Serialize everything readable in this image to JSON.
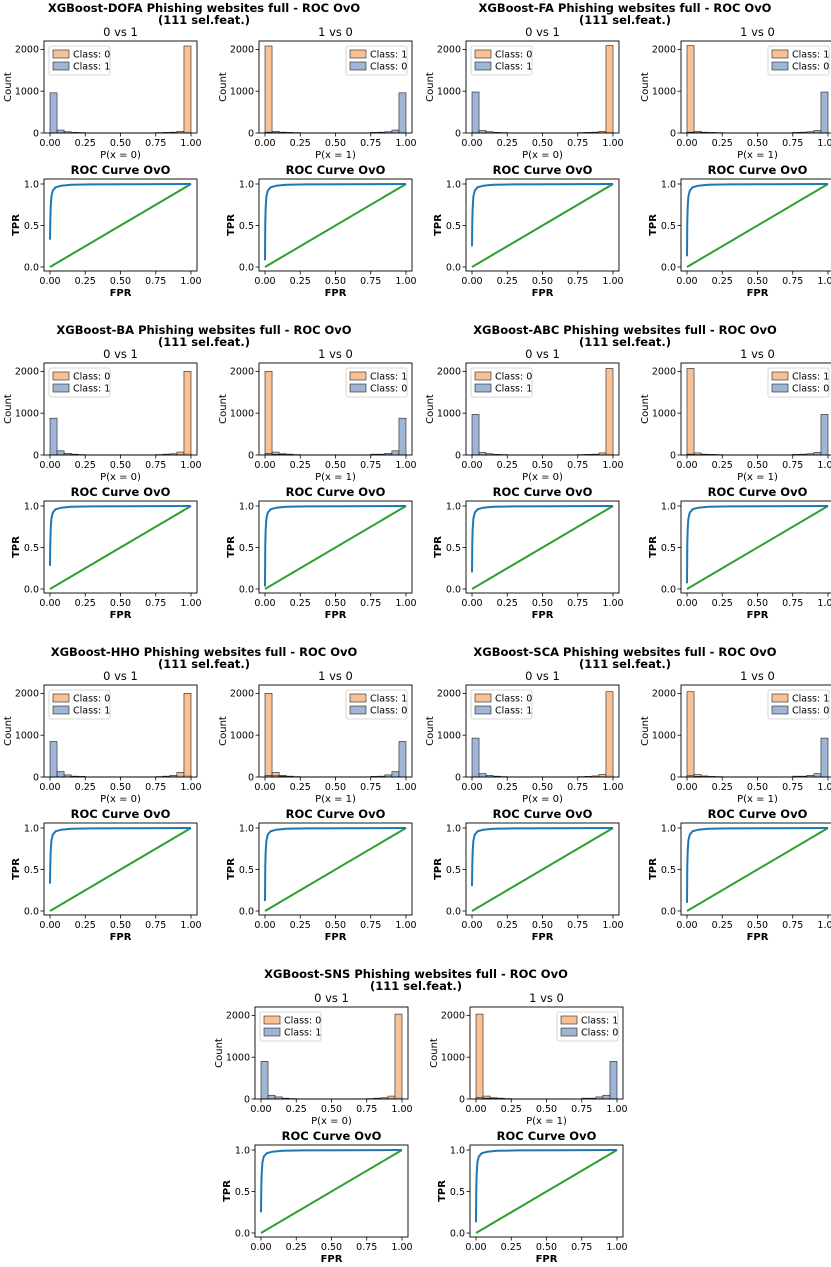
{
  "figure": {
    "background": "#ffffff"
  },
  "colors": {
    "class0": "#f7b583",
    "class1": "#8ea8cf",
    "class0_pos": "#f7b583",
    "roc": "#1f77b4",
    "diag": "#2ca02c"
  },
  "panel_common": {
    "hist_ylabel": "Count",
    "roc_title": "ROC Curve OvO",
    "roc_xlabel": "FPR",
    "roc_ylabel": "TPR",
    "x_ticks": [
      "0.00",
      "0.25",
      "0.50",
      "0.75",
      "1.00"
    ],
    "hist_y_ticks": [
      "0",
      "1000",
      "2000"
    ],
    "roc_y_ticks": [
      "0.0",
      "0.5",
      "1.0"
    ]
  },
  "chart_data": [
    {
      "type": "bar",
      "title_line1": "XGBoost-DOFA Phishing websites full -  ROC OvO",
      "title_line2": "(111 sel.feat.)",
      "panels": [
        {
          "title": "0 vs 1",
          "xlabel": "P(x = 0)",
          "legend": [
            "Class: 0",
            "Class: 1"
          ],
          "class1_bins": [
            960,
            70,
            30,
            15,
            10,
            5,
            5,
            5,
            5,
            5,
            5,
            5,
            5,
            5,
            5,
            5,
            5,
            5,
            10,
            20
          ],
          "class0_bins": [
            5,
            5,
            5,
            5,
            5,
            5,
            5,
            5,
            5,
            5,
            5,
            5,
            5,
            5,
            5,
            10,
            15,
            20,
            40,
            2080
          ]
        },
        {
          "title": "1 vs 0",
          "xlabel": "P(x = 1)",
          "legend": [
            "Class: 1",
            "Class: 0"
          ],
          "class1_bins": [
            2080,
            40,
            20,
            15,
            10,
            5,
            5,
            5,
            5,
            5,
            5,
            5,
            5,
            5,
            5,
            5,
            5,
            5,
            5,
            5
          ],
          "class0_bins": [
            20,
            10,
            5,
            5,
            5,
            5,
            5,
            5,
            5,
            5,
            5,
            5,
            5,
            5,
            5,
            15,
            20,
            30,
            70,
            960
          ]
        }
      ],
      "roc_start_tpr": [
        0.33,
        0.08
      ]
    },
    {
      "type": "bar",
      "title_line1": "XGBoost-FA Phishing websites full -  ROC OvO",
      "title_line2": "(111 sel.feat.)",
      "panels": [
        {
          "title": "0 vs 1",
          "xlabel": "P(x = 0)",
          "legend": [
            "Class: 0",
            "Class: 1"
          ],
          "class1_bins": [
            980,
            60,
            30,
            15,
            10,
            5,
            5,
            5,
            5,
            5,
            5,
            5,
            5,
            5,
            5,
            5,
            5,
            5,
            10,
            20
          ],
          "class0_bins": [
            5,
            5,
            5,
            5,
            5,
            5,
            5,
            5,
            5,
            5,
            5,
            5,
            5,
            5,
            5,
            10,
            15,
            20,
            40,
            2090
          ]
        },
        {
          "title": "1 vs 0",
          "xlabel": "P(x = 1)",
          "legend": [
            "Class: 1",
            "Class: 0"
          ],
          "class1_bins": [
            2090,
            40,
            20,
            15,
            10,
            5,
            5,
            5,
            5,
            5,
            5,
            5,
            5,
            5,
            5,
            5,
            5,
            5,
            5,
            5
          ],
          "class0_bins": [
            20,
            10,
            5,
            5,
            5,
            5,
            5,
            5,
            5,
            5,
            5,
            5,
            5,
            5,
            5,
            15,
            20,
            30,
            60,
            980
          ]
        }
      ],
      "roc_start_tpr": [
        0.25,
        0.13
      ]
    },
    {
      "type": "bar",
      "title_line1": "XGBoost-BA Phishing websites full -  ROC OvO",
      "title_line2": "(111 sel.feat.)",
      "panels": [
        {
          "title": "0 vs 1",
          "xlabel": "P(x = 0)",
          "legend": [
            "Class: 0",
            "Class: 1"
          ],
          "class1_bins": [
            880,
            100,
            40,
            20,
            10,
            5,
            5,
            5,
            5,
            5,
            5,
            5,
            5,
            5,
            5,
            5,
            10,
            15,
            20,
            40
          ],
          "class0_bins": [
            5,
            5,
            5,
            5,
            5,
            5,
            5,
            5,
            5,
            5,
            5,
            5,
            5,
            5,
            5,
            10,
            20,
            30,
            70,
            2000
          ]
        },
        {
          "title": "1 vs 0",
          "xlabel": "P(x = 1)",
          "legend": [
            "Class: 1",
            "Class: 0"
          ],
          "class1_bins": [
            2000,
            70,
            30,
            20,
            10,
            5,
            5,
            5,
            5,
            5,
            5,
            5,
            5,
            5,
            5,
            5,
            5,
            5,
            5,
            5
          ],
          "class0_bins": [
            40,
            20,
            15,
            10,
            5,
            5,
            5,
            5,
            5,
            5,
            5,
            5,
            5,
            5,
            5,
            20,
            20,
            40,
            100,
            880
          ]
        }
      ],
      "roc_start_tpr": [
        0.28,
        0.03
      ]
    },
    {
      "type": "bar",
      "title_line1": "XGBoost-ABC Phishing websites full -  ROC OvO",
      "title_line2": "(111 sel.feat.)",
      "panels": [
        {
          "title": "0 vs 1",
          "xlabel": "P(x = 0)",
          "legend": [
            "Class: 0",
            "Class: 1"
          ],
          "class1_bins": [
            970,
            60,
            30,
            15,
            10,
            5,
            5,
            5,
            5,
            5,
            5,
            5,
            5,
            5,
            5,
            5,
            5,
            5,
            10,
            20
          ],
          "class0_bins": [
            5,
            5,
            5,
            5,
            5,
            5,
            5,
            5,
            5,
            5,
            5,
            5,
            5,
            5,
            5,
            10,
            15,
            20,
            50,
            2070
          ]
        },
        {
          "title": "1 vs 0",
          "xlabel": "P(x = 1)",
          "legend": [
            "Class: 1",
            "Class: 0"
          ],
          "class1_bins": [
            2070,
            50,
            20,
            15,
            10,
            5,
            5,
            5,
            5,
            5,
            5,
            5,
            5,
            5,
            5,
            5,
            5,
            5,
            5,
            5
          ],
          "class0_bins": [
            20,
            10,
            5,
            5,
            5,
            5,
            5,
            5,
            5,
            5,
            5,
            5,
            5,
            5,
            5,
            15,
            20,
            30,
            60,
            970
          ]
        }
      ],
      "roc_start_tpr": [
        0.2,
        0.07
      ]
    },
    {
      "type": "bar",
      "title_line1": "XGBoost-HHO Phishing websites full -  ROC OvO",
      "title_line2": "(111 sel.feat.)",
      "panels": [
        {
          "title": "0 vs 1",
          "xlabel": "P(x = 0)",
          "legend": [
            "Class: 0",
            "Class: 1"
          ],
          "class1_bins": [
            850,
            130,
            50,
            20,
            15,
            5,
            5,
            5,
            5,
            5,
            5,
            5,
            5,
            5,
            5,
            5,
            10,
            20,
            30,
            40
          ],
          "class0_bins": [
            5,
            5,
            5,
            5,
            5,
            5,
            5,
            5,
            5,
            5,
            5,
            5,
            5,
            5,
            5,
            10,
            20,
            40,
            110,
            2000
          ]
        },
        {
          "title": "1 vs 0",
          "xlabel": "P(x = 1)",
          "legend": [
            "Class: 1",
            "Class: 0"
          ],
          "class1_bins": [
            2000,
            110,
            40,
            20,
            10,
            5,
            5,
            5,
            5,
            5,
            5,
            5,
            5,
            5,
            5,
            5,
            5,
            5,
            5,
            5
          ],
          "class0_bins": [
            40,
            30,
            20,
            10,
            5,
            5,
            5,
            5,
            5,
            5,
            5,
            5,
            5,
            5,
            5,
            15,
            20,
            50,
            130,
            850
          ]
        }
      ],
      "roc_start_tpr": [
        0.33,
        0.12
      ]
    },
    {
      "type": "bar",
      "title_line1": "XGBoost-SCA Phishing websites full -  ROC OvO",
      "title_line2": "(111 sel.feat.)",
      "panels": [
        {
          "title": "0 vs 1",
          "xlabel": "P(x = 0)",
          "legend": [
            "Class: 0",
            "Class: 1"
          ],
          "class1_bins": [
            930,
            80,
            40,
            20,
            10,
            5,
            5,
            5,
            5,
            5,
            5,
            5,
            5,
            5,
            5,
            5,
            5,
            10,
            15,
            30
          ],
          "class0_bins": [
            5,
            5,
            5,
            5,
            5,
            5,
            5,
            5,
            5,
            5,
            5,
            5,
            5,
            5,
            5,
            10,
            15,
            25,
            60,
            2040
          ]
        },
        {
          "title": "1 vs 0",
          "xlabel": "P(x = 1)",
          "legend": [
            "Class: 1",
            "Class: 0"
          ],
          "class1_bins": [
            2040,
            60,
            25,
            15,
            10,
            5,
            5,
            5,
            5,
            5,
            5,
            5,
            5,
            5,
            5,
            5,
            5,
            5,
            5,
            5
          ],
          "class0_bins": [
            30,
            15,
            10,
            5,
            5,
            5,
            5,
            5,
            5,
            5,
            5,
            5,
            5,
            5,
            5,
            20,
            20,
            40,
            80,
            930
          ]
        }
      ],
      "roc_start_tpr": [
        0.3,
        0.1
      ]
    },
    {
      "type": "bar",
      "title_line1": "XGBoost-SNS Phishing websites full -  ROC OvO",
      "title_line2": "(111 sel.feat.)",
      "panels": [
        {
          "title": "0 vs 1",
          "xlabel": "P(x = 0)",
          "legend": [
            "Class: 0",
            "Class: 1"
          ],
          "class1_bins": [
            900,
            90,
            50,
            20,
            10,
            5,
            5,
            5,
            5,
            5,
            5,
            5,
            5,
            5,
            5,
            5,
            10,
            15,
            20,
            35
          ],
          "class0_bins": [
            5,
            5,
            5,
            5,
            5,
            5,
            5,
            5,
            5,
            5,
            5,
            5,
            5,
            5,
            5,
            10,
            20,
            30,
            70,
            2030
          ]
        },
        {
          "title": "1 vs 0",
          "xlabel": "P(x = 1)",
          "legend": [
            "Class: 1",
            "Class: 0"
          ],
          "class1_bins": [
            2030,
            70,
            30,
            20,
            10,
            5,
            5,
            5,
            5,
            5,
            5,
            5,
            5,
            5,
            5,
            5,
            5,
            5,
            5,
            5
          ],
          "class0_bins": [
            35,
            20,
            15,
            10,
            5,
            5,
            5,
            5,
            5,
            5,
            5,
            5,
            5,
            5,
            5,
            20,
            20,
            50,
            90,
            900
          ]
        }
      ],
      "roc_start_tpr": [
        0.25,
        0.13
      ]
    }
  ]
}
